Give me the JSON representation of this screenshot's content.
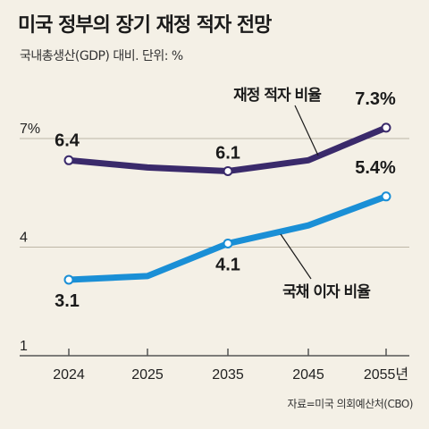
{
  "title": "미국 정부의 장기 재정 적자 전망",
  "subtitle": "국내총생산(GDP) 대비. 단위: %",
  "source": "자료=미국 의회예산처(CBO)",
  "chart_data": {
    "type": "line",
    "categories": [
      "2024",
      "2025",
      "2035",
      "2045",
      "2055년"
    ],
    "ylim": [
      1,
      7
    ],
    "yticks": [
      "7%",
      "4",
      "1"
    ],
    "grid": true,
    "series": [
      {
        "name": "재정 적자 비율",
        "values": [
          6.4,
          6.2,
          6.1,
          6.4,
          7.3
        ],
        "color": "#3a2a6b",
        "labels": [
          "6.4",
          "",
          "6.1",
          "",
          "7.3%"
        ]
      },
      {
        "name": "국채 이자 비율",
        "values": [
          3.1,
          3.2,
          4.1,
          4.6,
          5.4
        ],
        "color": "#1a8fd6",
        "labels": [
          "3.1",
          "",
          "4.1",
          "",
          "5.4%"
        ]
      }
    ]
  }
}
